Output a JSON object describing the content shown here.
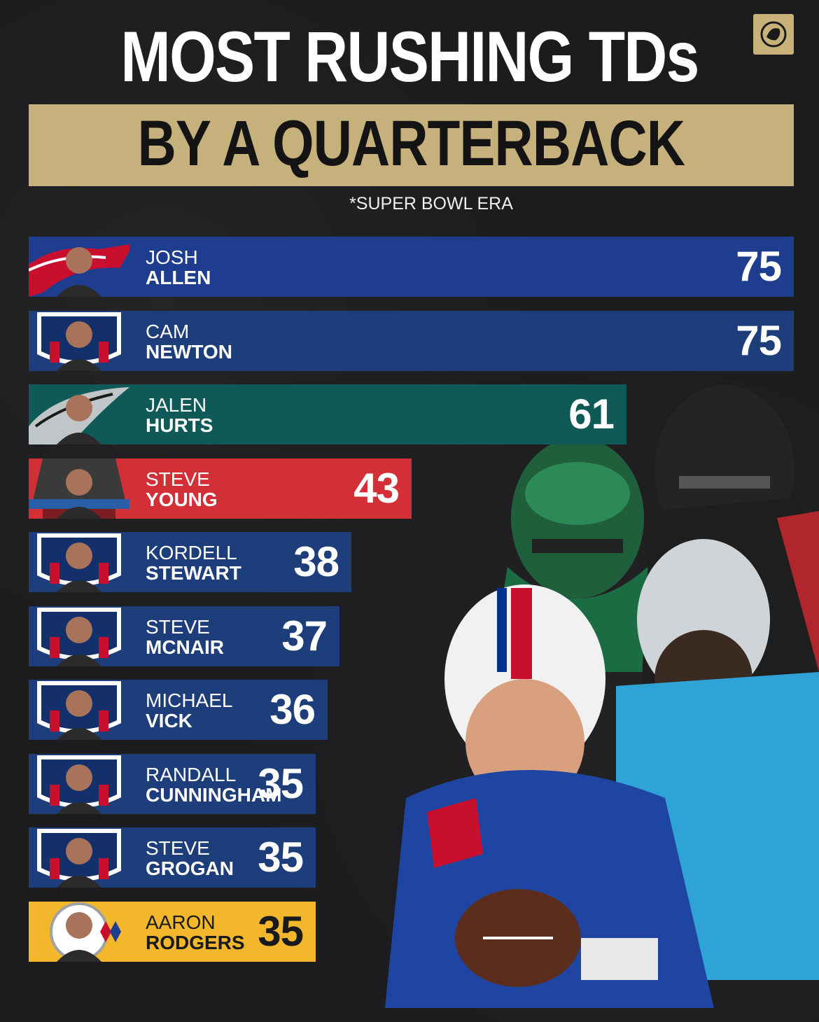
{
  "header": {
    "title_line1": "MOST RUSHING TDs",
    "title_line2": "BY A QUARTERBACK",
    "note": "*SUPER BOWL ERA"
  },
  "colors": {
    "background": "#1c1c1e",
    "gold": "#c6b07b",
    "bills_blue": "#1e3d8f",
    "nfl_navy": "#1d3e7a",
    "eagles_green": "#0f5a56",
    "niners_red": "#d22f37",
    "steelers_gold": "#f2b72b"
  },
  "icons": [
    "bills-logo-icon",
    "nfl-shield-icon",
    "eagles-logo-icon",
    "hall-of-fame-icon",
    "steelers-logo-icon",
    "brand-lion-icon"
  ],
  "chart_data": {
    "type": "bar",
    "orientation": "horizontal",
    "title": "MOST RUSHING TDs BY A QUARTERBACK",
    "subtitle": "*SUPER BOWL ERA",
    "categories": [
      "JOSH ALLEN",
      "CAM NEWTON",
      "JALEN HURTS",
      "STEVE YOUNG",
      "KORDELL STEWART",
      "STEVE MCNAIR",
      "MICHAEL VICK",
      "RANDALL CUNNINGHAM",
      "STEVE GROGAN",
      "AARON RODGERS"
    ],
    "values": [
      75,
      75,
      61,
      43,
      38,
      37,
      36,
      35,
      35,
      35
    ],
    "rows": [
      {
        "first": "JOSH",
        "last": "ALLEN",
        "value": "75",
        "badge": "bills-logo-icon",
        "color": "#1e3d8f"
      },
      {
        "first": "CAM",
        "last": "NEWTON",
        "value": "75",
        "badge": "nfl-shield-icon",
        "color": "#1d3e7a"
      },
      {
        "first": "JALEN",
        "last": "HURTS",
        "value": "61",
        "badge": "eagles-logo-icon",
        "color": "#0f5a56"
      },
      {
        "first": "STEVE",
        "last": "YOUNG",
        "value": "43",
        "badge": "hall-of-fame-icon",
        "color": "#d22f37"
      },
      {
        "first": "KORDELL",
        "last": "STEWART",
        "value": "38",
        "badge": "nfl-shield-icon",
        "color": "#1d3e7a"
      },
      {
        "first": "STEVE",
        "last": "MCNAIR",
        "value": "37",
        "badge": "nfl-shield-icon",
        "color": "#1d3e7a"
      },
      {
        "first": "MICHAEL",
        "last": "VICK",
        "value": "36",
        "badge": "nfl-shield-icon",
        "color": "#1d3e7a"
      },
      {
        "first": "RANDALL",
        "last": "CUNNINGHAM",
        "value": "35",
        "badge": "nfl-shield-icon",
        "color": "#1d3e7a"
      },
      {
        "first": "STEVE",
        "last": "GROGAN",
        "value": "35",
        "badge": "nfl-shield-icon",
        "color": "#1d3e7a"
      },
      {
        "first": "AARON",
        "last": "RODGERS",
        "value": "35",
        "badge": "steelers-logo-icon",
        "color": "#f2b72b"
      }
    ],
    "grid": false,
    "legend": "none"
  }
}
